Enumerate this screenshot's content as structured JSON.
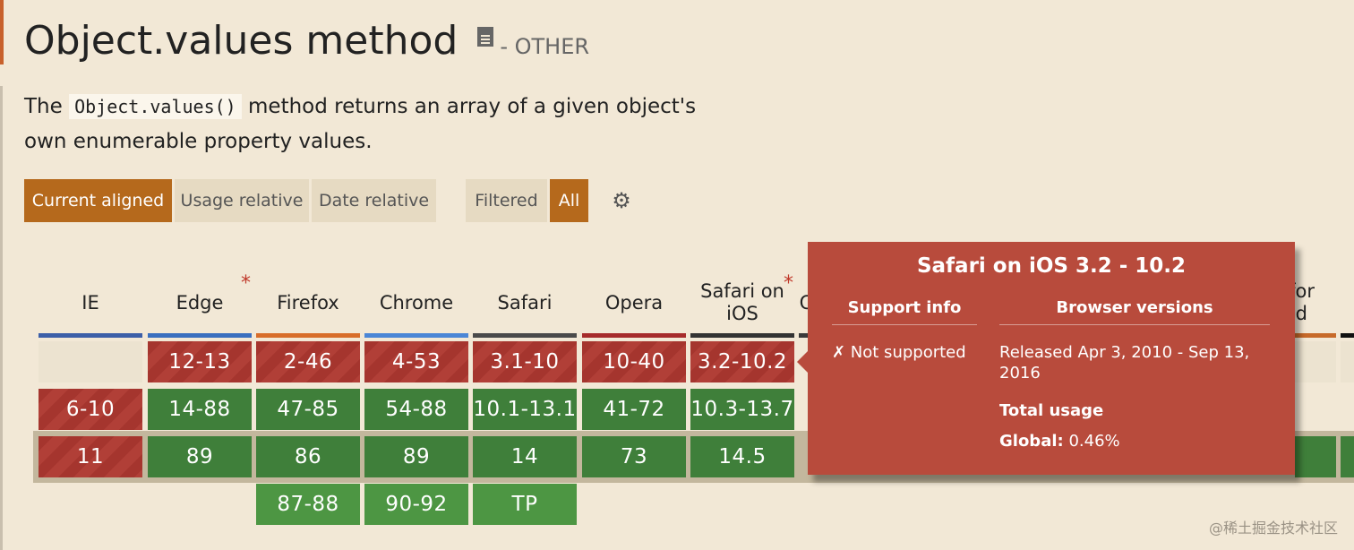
{
  "feature": {
    "title": "Object.values method",
    "category": "- OTHER",
    "description_before": "The",
    "description_code": "Object.values()",
    "description_after": "method returns an array of a given object's own enumerable property values."
  },
  "view_buttons": [
    {
      "label": "Current aligned",
      "active": true
    },
    {
      "label": "Usage relative",
      "active": false
    },
    {
      "label": "Date relative",
      "active": false
    }
  ],
  "filter_buttons": [
    {
      "label": "Filtered",
      "active": false
    },
    {
      "label": "All",
      "active": true
    }
  ],
  "settings_icon": "gear-icon",
  "browsers": [
    {
      "name": "IE",
      "color": "#3c5fa8",
      "asterisk": false
    },
    {
      "name": "Edge",
      "color": "#3a6fbf",
      "asterisk": true
    },
    {
      "name": "Firefox",
      "color": "#d86d2a",
      "asterisk": false
    },
    {
      "name": "Chrome",
      "color": "#4b86d6",
      "asterisk": false
    },
    {
      "name": "Safari",
      "color": "#4a4a4a",
      "asterisk": false
    },
    {
      "name": "Opera",
      "color": "#a62b2b",
      "asterisk": false
    },
    {
      "name": "Safari on iOS",
      "color": "#333333",
      "asterisk": true
    }
  ],
  "partial_headers": [
    {
      "name": "C",
      "color": "#3a3a3a"
    },
    {
      "name": "x for\noid",
      "color": "#c76a2a"
    }
  ],
  "grid": [
    [
      {
        "v": "",
        "s": "empty"
      },
      {
        "v": "6-10",
        "s": "red"
      },
      {
        "v": "11",
        "s": "red"
      },
      null
    ],
    [
      {
        "v": "12-13",
        "s": "red"
      },
      {
        "v": "14-88",
        "s": "green"
      },
      {
        "v": "89",
        "s": "green"
      },
      null
    ],
    [
      {
        "v": "2-46",
        "s": "red"
      },
      {
        "v": "47-85",
        "s": "green"
      },
      {
        "v": "86",
        "s": "green"
      },
      {
        "v": "87-88",
        "s": "lgreen"
      }
    ],
    [
      {
        "v": "4-53",
        "s": "red"
      },
      {
        "v": "54-88",
        "s": "green"
      },
      {
        "v": "89",
        "s": "green"
      },
      {
        "v": "90-92",
        "s": "lgreen"
      }
    ],
    [
      {
        "v": "3.1-10",
        "s": "red"
      },
      {
        "v": "10.1-13.1",
        "s": "green"
      },
      {
        "v": "14",
        "s": "green"
      },
      {
        "v": "TP",
        "s": "lgreen"
      }
    ],
    [
      {
        "v": "10-40",
        "s": "red"
      },
      {
        "v": "41-72",
        "s": "green"
      },
      {
        "v": "73",
        "s": "green"
      },
      null
    ],
    [
      {
        "v": "3.2-10.2",
        "s": "red"
      },
      {
        "v": "10.3-13.7",
        "s": "green"
      },
      {
        "v": "14.5",
        "s": "green"
      },
      null
    ]
  ],
  "tooltip": {
    "title": "Safari on iOS 3.2 - 10.2",
    "support_header": "Support info",
    "versions_header": "Browser versions",
    "support_value": "✗ Not supported",
    "released": "Released Apr 3, 2010 - Sep 13, 2016",
    "total_usage_label": "Total usage",
    "global_label": "Global:",
    "global_value": "0.46%"
  },
  "watermark": "@稀土掘金技术社区"
}
